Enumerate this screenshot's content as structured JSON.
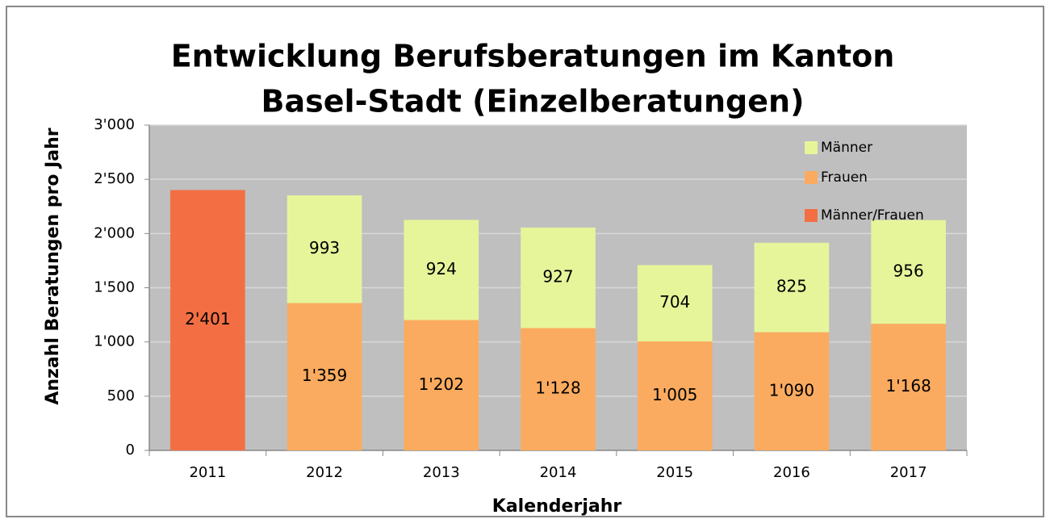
{
  "chart_data": {
    "type": "stacked_bar",
    "title": [
      "Entwicklung Berufsberatungen im Kanton",
      "Basel-Stadt (Einzelberatungen)"
    ],
    "x_label": "Kalenderjahr",
    "y_label": "Anzahl Beratungen pro Jahr",
    "categories": [
      "2011",
      "2012",
      "2013",
      "2014",
      "2015",
      "2016",
      "2017"
    ],
    "series": [
      {
        "name": "Männer/Frauen",
        "color": "#f36f43",
        "values": [
          2401,
          null,
          null,
          null,
          null,
          null,
          null
        ],
        "value_labels": [
          "2'401",
          null,
          null,
          null,
          null,
          null,
          null
        ]
      },
      {
        "name": "Frauen",
        "color": "#fbab5f",
        "values": [
          null,
          1359,
          1202,
          1128,
          1005,
          1090,
          1168
        ],
        "value_labels": [
          null,
          "1'359",
          "1'202",
          "1'128",
          "1'005",
          "1'090",
          "1'168"
        ]
      },
      {
        "name": "Männer",
        "color": "#e6f59a",
        "values": [
          null,
          993,
          924,
          927,
          704,
          825,
          956
        ],
        "value_labels": [
          null,
          "993",
          "924",
          "927",
          "704",
          "825",
          "956"
        ]
      }
    ],
    "ylim": [
      0,
      3000
    ],
    "yticks": [
      0,
      500,
      {
        "value": 1000,
        "label": "1'000"
      },
      {
        "value": 1500,
        "label": "1'500"
      },
      {
        "value": 2000,
        "label": "2'000"
      },
      {
        "value": 2500,
        "label": "2'500"
      },
      {
        "value": 3000,
        "label": "3'000"
      }
    ],
    "grid": true,
    "legend": "upper right"
  }
}
